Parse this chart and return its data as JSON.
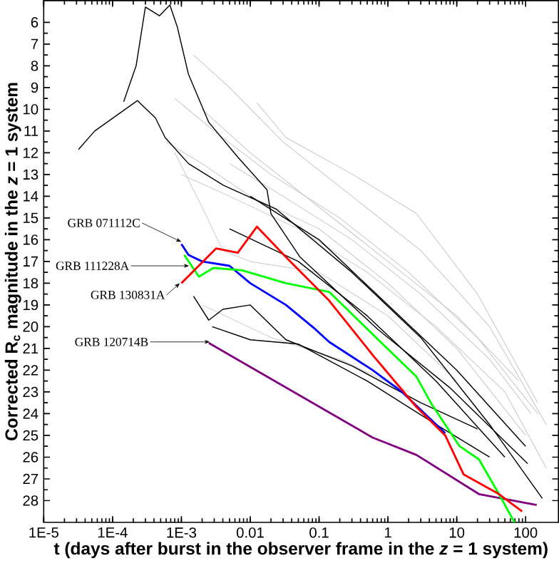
{
  "chart_data": {
    "type": "line",
    "xlabel": "t (days after burst in the observer frame in the *z* = 1 system)",
    "ylabel": "Corrected R$_{c}$ magnitude in the *z* = 1 system",
    "log": "x",
    "xlim": [
      1e-05,
      300
    ],
    "ylim": [
      29,
      5
    ],
    "xticks": [
      {
        "value": 1e-05,
        "label": "1E-5"
      },
      {
        "value": 0.0001,
        "label": "1E-4"
      },
      {
        "value": 0.001,
        "label": "1E-3"
      },
      0.01,
      0.1,
      1,
      10,
      100
    ],
    "yticks": [
      6,
      7,
      8,
      9,
      10,
      11,
      12,
      13,
      14,
      15,
      16,
      17,
      18,
      19,
      20,
      21,
      22,
      23,
      24,
      25,
      26,
      27,
      28
    ],
    "series": [
      {
        "color": "#c8c8c8",
        "x": [
          0.0125,
          0.033,
          0.31,
          2.6,
          20,
          150
        ],
        "values": [
          9.7,
          11.3,
          13.0,
          14.8,
          18.5,
          23.5
        ]
      },
      {
        "color": "#c8c8c8",
        "x": [
          0.0015,
          0.005,
          0.03,
          0.3,
          3,
          30,
          200
        ],
        "values": [
          7.5,
          9.0,
          11.5,
          14.0,
          16.5,
          20.0,
          24.5
        ]
      },
      {
        "color": "#c8c8c8",
        "x": [
          0.0008,
          0.003,
          0.02,
          0.2,
          2,
          20,
          150
        ],
        "values": [
          9.5,
          11.0,
          13.0,
          15.0,
          17.5,
          20.5,
          24.0
        ]
      },
      {
        "color": "#c8c8c8",
        "x": [
          0.0006,
          0.002,
          0.01,
          0.1,
          1,
          10,
          100
        ],
        "values": [
          11.5,
          12.5,
          14.0,
          15.5,
          18.0,
          21.0,
          25.0
        ]
      },
      {
        "color": "#c8c8c8",
        "x": [
          0.001,
          0.005,
          0.05,
          0.5,
          5,
          50,
          200
        ],
        "values": [
          13.0,
          14.0,
          15.5,
          17.5,
          20.0,
          23.0,
          26.5
        ]
      },
      {
        "color": "#c8c8c8",
        "x": [
          0.002,
          0.01,
          0.1,
          1,
          10,
          80
        ],
        "values": [
          10.0,
          12.0,
          14.5,
          17.0,
          19.5,
          22.5
        ]
      },
      {
        "color": "#c8c8c8",
        "x": [
          0.0008,
          0.002,
          0.004,
          0.01,
          0.1,
          1,
          10
        ],
        "values": [
          12.0,
          14.5,
          16.5,
          17.0,
          17.5,
          19.5,
          22.5
        ]
      },
      {
        "color": "#c8c8c8",
        "x": [
          0.005,
          0.03,
          0.3,
          3,
          30,
          120
        ],
        "values": [
          12.5,
          14.0,
          16.0,
          18.5,
          21.5,
          24.0
        ]
      },
      {
        "color": "#c8c8c8",
        "x": [
          0.002,
          0.02,
          0.2,
          2
        ],
        "values": [
          19.0,
          20.5,
          21.5,
          23.0
        ]
      },
      {
        "color": "#000000",
        "x": [
          0.000145,
          0.00022,
          0.0003,
          0.00048,
          0.00068,
          0.00087,
          0.00127,
          0.0025,
          0.0066,
          0.0175,
          0.02,
          0.053,
          0.7,
          7.9,
          107
        ],
        "values": [
          9.65,
          8.0,
          5.3,
          5.7,
          5.2,
          6.2,
          8.4,
          10.6,
          12.2,
          13.7,
          14.8,
          16.8,
          20.1,
          22.8,
          26.3
        ]
      },
      {
        "color": "#000000",
        "x": [
          3.2e-05,
          5.5e-05,
          0.00023,
          0.00042,
          0.00058,
          0.00127,
          0.0041,
          0.024,
          0.3,
          3,
          30,
          175
        ],
        "values": [
          11.85,
          11.0,
          9.6,
          10.4,
          11.3,
          12.5,
          13.5,
          14.6,
          17.5,
          20.5,
          24.5,
          27.9
        ]
      },
      {
        "color": "#000000",
        "x": [
          0.0015,
          0.0025,
          0.004,
          0.01,
          0.033,
          0.3,
          3,
          20
        ],
        "values": [
          18.6,
          19.7,
          19.2,
          19.0,
          20.6,
          21.8,
          23.5,
          24.7
        ]
      },
      {
        "color": "#000000",
        "x": [
          0.0028,
          0.01,
          0.05,
          0.5,
          5,
          30
        ],
        "values": [
          20.0,
          20.6,
          20.8,
          22.5,
          24.5,
          26.0
        ]
      },
      {
        "color": "#000000",
        "x": [
          0.005,
          0.05,
          0.5,
          5,
          50
        ],
        "values": [
          15.5,
          17.0,
          19.5,
          22.5,
          26.0
        ]
      },
      {
        "color": "#000000",
        "x": [
          0.01,
          0.1,
          1,
          10,
          100
        ],
        "values": [
          14.0,
          16.0,
          19.0,
          22.0,
          25.5
        ]
      },
      {
        "color": "#800080",
        "x": [
          0.0025,
          0.6,
          2.6,
          21,
          145
        ],
        "values": [
          20.75,
          25.1,
          25.9,
          27.7,
          28.2
        ]
      },
      {
        "color": "#0000ff",
        "x": [
          0.001,
          0.00127,
          0.002,
          0.005,
          0.01,
          0.033,
          0.087,
          0.14,
          0.6,
          1.6,
          6.8
        ],
        "values": [
          16.2,
          16.7,
          17.0,
          17.2,
          18.0,
          19.0,
          20.1,
          20.7,
          22.0,
          23.0,
          24.9
        ]
      },
      {
        "color": "#00ff00",
        "x": [
          0.0011,
          0.0018,
          0.0029,
          0.0075,
          0.033,
          0.14,
          0.37,
          0.98,
          2.6,
          4.2,
          11,
          21,
          41,
          69
        ],
        "values": [
          16.7,
          17.7,
          17.3,
          17.4,
          18.0,
          18.4,
          19.7,
          21.0,
          22.3,
          23.5,
          25.5,
          26.1,
          27.7,
          29.0
        ]
      },
      {
        "color": "#ff0000",
        "x": [
          0.001,
          0.0032,
          0.0066,
          0.0125,
          0.033,
          0.14,
          0.6,
          2.6,
          6.8,
          12.6,
          41,
          89
        ],
        "values": [
          18.0,
          16.4,
          16.6,
          15.4,
          16.8,
          18.8,
          21.3,
          23.7,
          25.0,
          26.8,
          27.7,
          28.5
        ]
      }
    ],
    "annotations": [
      {
        "text": "GRB 071112C",
        "x": 0.001,
        "y": 16.1
      },
      {
        "text": "GRB 111228A",
        "x": 0.0013,
        "y": 17.2
      },
      {
        "text": "GRB 130831A",
        "x": 0.00095,
        "y": 18.0
      },
      {
        "text": "GRB 120714B",
        "x": 0.0026,
        "y": 20.7
      }
    ]
  }
}
